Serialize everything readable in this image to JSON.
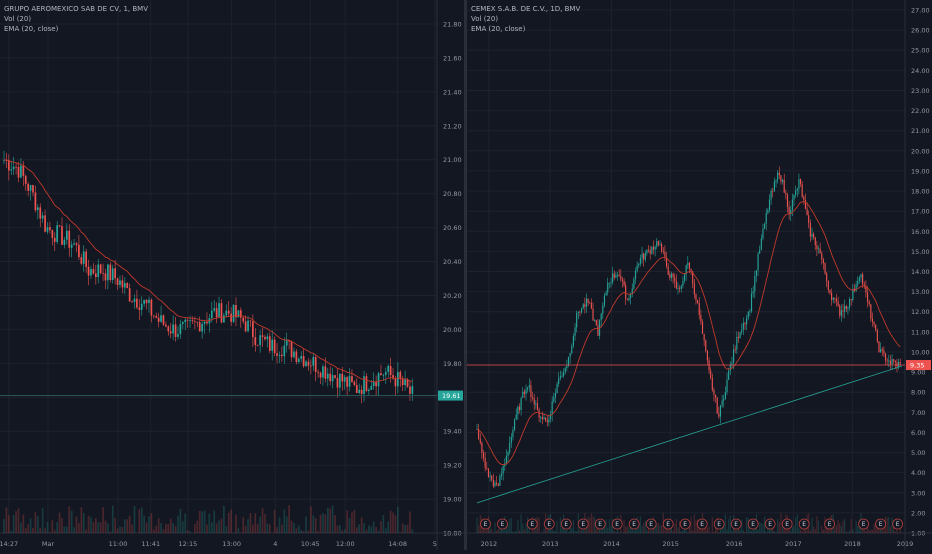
{
  "colors": {
    "background": "#131722",
    "grid": "#1e222d",
    "up": "#26a69a",
    "down": "#ef5350",
    "ema": "#c0392b",
    "trendline": "#26a69a",
    "axis_text": "#9598a1",
    "divider": "#2a2e39",
    "price_line": "#ef5350"
  },
  "chart_data": [
    {
      "type": "candlestick",
      "title": "GRUPO AEROMEXICO SAB DE CV, 1, BMV",
      "indicators": [
        "Vol (20)",
        "EMA (20, close)"
      ],
      "ylim": [
        18.8,
        21.8
      ],
      "y_ticks": [
        "21.80",
        "21.60",
        "21.40",
        "21.20",
        "21.00",
        "20.80",
        "20.60",
        "20.40",
        "20.20",
        "20.00",
        "19.80",
        "19.60",
        "19.40",
        "19.20",
        "19.00",
        "18.80"
      ],
      "x_ticks": [
        {
          "label": "14:27",
          "pos": 0.02
        },
        {
          "label": "Mar",
          "pos": 0.11
        },
        {
          "label": "11:00",
          "pos": 0.27
        },
        {
          "label": "11:41",
          "pos": 0.345
        },
        {
          "label": "12:15",
          "pos": 0.43
        },
        {
          "label": "13:00",
          "pos": 0.53
        },
        {
          "label": "4",
          "pos": 0.63
        },
        {
          "label": "10:45",
          "pos": 0.71
        },
        {
          "label": "12:00",
          "pos": 0.79
        },
        {
          "label": "14:08",
          "pos": 0.91
        },
        {
          "label": "5",
          "pos": 0.995
        }
      ],
      "last_price": "19.61",
      "last_value": 19.61,
      "price_path": [
        21.0,
        20.95,
        20.8,
        20.6,
        20.55,
        20.5,
        20.35,
        20.35,
        20.3,
        20.2,
        20.15,
        20.05,
        20.0,
        20.0,
        20.05,
        20.1,
        20.1,
        20.05,
        19.95,
        19.9,
        19.9,
        19.85,
        19.8,
        19.75,
        19.7,
        19.65,
        19.7,
        19.75,
        19.7,
        19.61
      ]
    },
    {
      "type": "candlestick",
      "title": "CEMEX S.A.B. DE C.V., 1D, BMV",
      "indicators": [
        "Vol (20)",
        "EMA (20, close)"
      ],
      "ylim": [
        1.0,
        27.0
      ],
      "y_ticks": [
        "27.00",
        "26.00",
        "25.00",
        "24.00",
        "23.00",
        "22.00",
        "21.00",
        "20.00",
        "19.00",
        "18.00",
        "17.00",
        "16.00",
        "15.00",
        "14.00",
        "13.00",
        "12.00",
        "11.00",
        "10.00",
        "9.00",
        "8.00",
        "7.00",
        "6.00",
        "5.00",
        "4.00",
        "3.00",
        "2.00",
        "1.00"
      ],
      "x_ticks": [
        {
          "label": "2012",
          "pos": 0.05
        },
        {
          "label": "2013",
          "pos": 0.19
        },
        {
          "label": "2014",
          "pos": 0.33
        },
        {
          "label": "2015",
          "pos": 0.465
        },
        {
          "label": "2016",
          "pos": 0.61
        },
        {
          "label": "2017",
          "pos": 0.745
        },
        {
          "label": "2018",
          "pos": 0.88
        },
        {
          "label": "2019",
          "pos": 1.0
        }
      ],
      "last_price": "9.35",
      "last_value": 9.35,
      "price_path": [
        6.0,
        4.0,
        3.2,
        5.0,
        7.0,
        8.5,
        7.0,
        6.5,
        8.5,
        9.5,
        12.0,
        12.5,
        11.0,
        13.5,
        14.0,
        12.5,
        14.5,
        15.0,
        15.5,
        14.0,
        13.0,
        14.5,
        12.0,
        9.0,
        6.8,
        9.0,
        11.0,
        12.0,
        15.0,
        17.5,
        19.0,
        17.0,
        18.5,
        16.0,
        15.0,
        13.0,
        12.0,
        12.5,
        14.0,
        12.0,
        10.0,
        9.5,
        9.35
      ],
      "trendline": {
        "from": [
          0.0,
          2.5
        ],
        "to": [
          1.0,
          9.3
        ]
      },
      "events": {
        "label": "E",
        "positions": [
          0.02,
          0.06,
          0.13,
          0.17,
          0.21,
          0.25,
          0.29,
          0.33,
          0.37,
          0.41,
          0.45,
          0.49,
          0.53,
          0.57,
          0.61,
          0.65,
          0.69,
          0.73,
          0.77,
          0.83,
          0.91,
          0.95,
          0.99
        ]
      }
    }
  ]
}
